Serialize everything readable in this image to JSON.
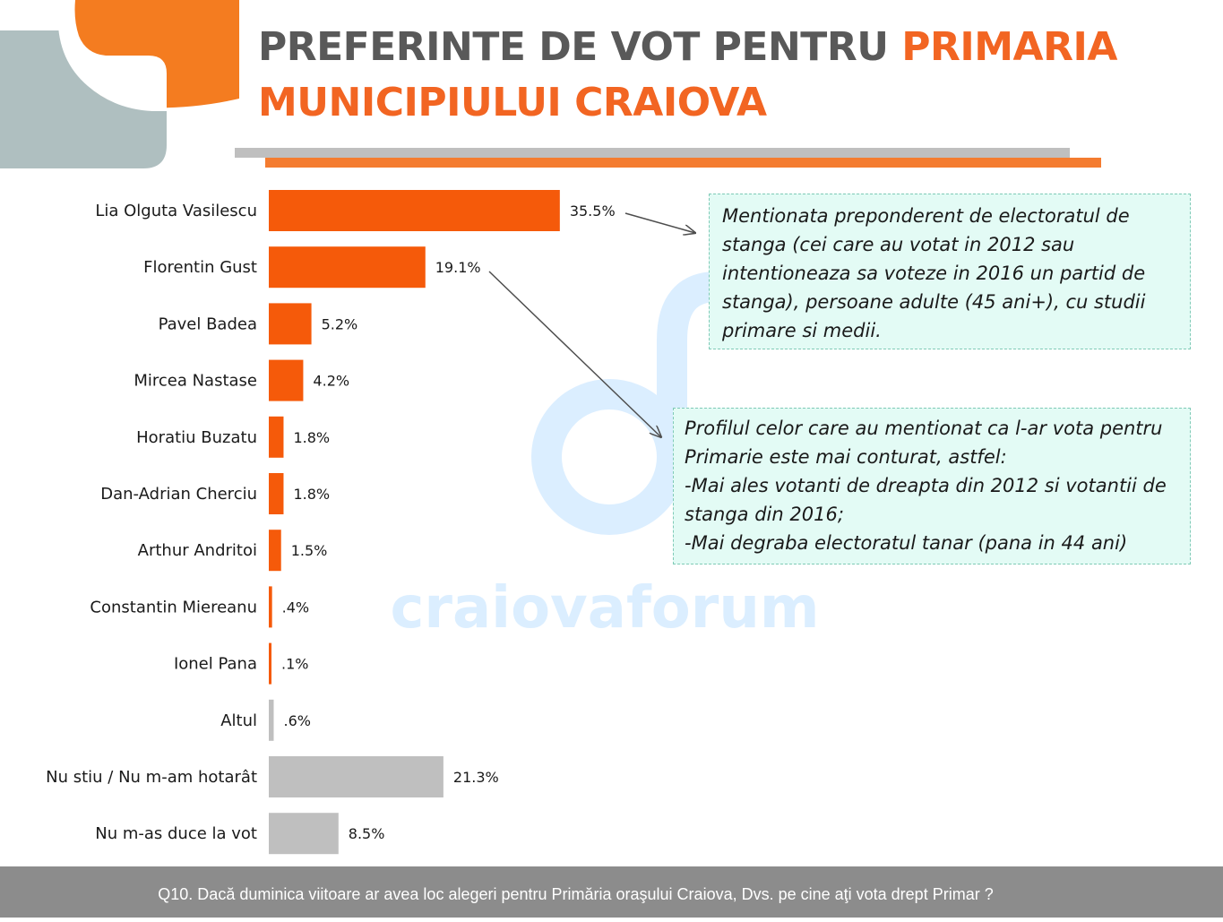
{
  "title": {
    "part1": "PREFERINTE DE VOT PENTRU ",
    "part2": "PRIMARIA",
    "part3": "MUNICIPIULUI CRAIOVA"
  },
  "colors": {
    "accent": "#f26522",
    "candidate_bar": "#f55a0a",
    "other_bar": "#bfbfbf",
    "note_bg": "#e3fbf5",
    "footer_bg": "#8c8c8c",
    "watermark": "#dbeeff"
  },
  "watermark": {
    "text": "craiovaforum"
  },
  "chart_data": {
    "type": "bar",
    "orientation": "horizontal",
    "categories": [
      "Lia Olguta Vasilescu",
      "Florentin Gust",
      "Pavel Badea",
      "Mircea Nastase",
      "Horatiu Buzatu",
      "Dan-Adrian Cherciu",
      "Arthur Andritoi",
      "Constantin Miereanu",
      "Ionel Pana",
      "Altul",
      "Nu stiu / Nu m-am hotarât",
      "Nu m-as duce la vot"
    ],
    "values": [
      35.5,
      19.1,
      5.2,
      4.2,
      1.8,
      1.8,
      1.5,
      0.4,
      0.1,
      0.6,
      21.3,
      8.5
    ],
    "value_labels": [
      "35.5%",
      "19.1%",
      "5.2%",
      "4.2%",
      "1.8%",
      "1.8%",
      "1.5%",
      ".4%",
      ".1%",
      ".6%",
      "21.3%",
      "8.5%"
    ],
    "bar_color_groups": [
      "candidate",
      "candidate",
      "candidate",
      "candidate",
      "candidate",
      "candidate",
      "candidate",
      "candidate",
      "candidate",
      "other",
      "other",
      "other"
    ],
    "xlim": [
      0,
      40
    ],
    "grid": false,
    "legend": "none"
  },
  "notes": [
    {
      "lines": [
        "Mentionata preponderent de electoratul de",
        "stanga (cei care au votat in 2012 sau",
        "intentioneaza sa voteze in 2016 un partid de",
        "stanga), persoane adulte (45 ani+), cu studii",
        "primare si medii."
      ]
    },
    {
      "lines": [
        "Profilul celor care au mentionat ca l-ar vota pentru",
        "Primarie este mai conturat, astfel:",
        "-Mai ales votanti de dreapta din 2012 si votantii de",
        "stanga din 2016;",
        "-Mai degraba electoratul tanar (pana in 44 ani)"
      ]
    }
  ],
  "footer": {
    "question": "Q10. Dacă duminica viitoare ar avea loc alegeri pentru Primăria oraşului Craiova, Dvs. pe cine aţi vota drept Primar ?"
  }
}
